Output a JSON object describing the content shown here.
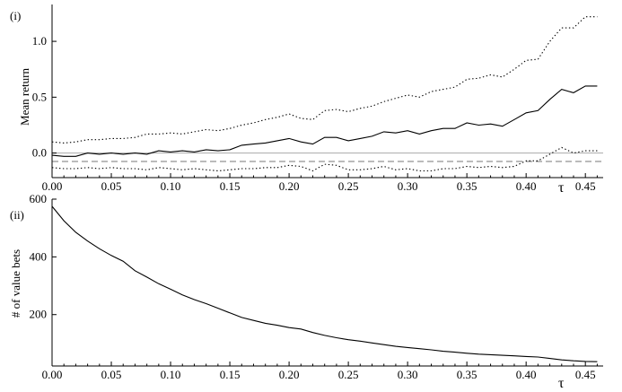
{
  "chart_data": [
    {
      "type": "line",
      "panel_label": "(i)",
      "xlabel": "τ",
      "ylabel": "Mean return",
      "xlim": [
        0,
        0.465
      ],
      "ylim": [
        -0.22,
        1.33
      ],
      "xticks": [
        0.0,
        0.05,
        0.1,
        0.15,
        0.2,
        0.25,
        0.3,
        0.35,
        0.4,
        0.45
      ],
      "xtick_labels": [
        "0.00",
        "0.05",
        "0.10",
        "0.15",
        "0.20",
        "0.25",
        "0.30",
        "0.35",
        "0.40",
        "0.45"
      ],
      "yticks": [
        0.0,
        0.5,
        1.0
      ],
      "ytick_labels": [
        "0.0",
        "0.5",
        "1.0"
      ],
      "reference_lines": [
        {
          "y": 0.0,
          "style": "solid",
          "color": "#aaaaaa"
        },
        {
          "y": -0.075,
          "style": "dashed",
          "color": "#777777"
        }
      ],
      "series": [
        {
          "style": "solid",
          "x": [
            0.0,
            0.01,
            0.02,
            0.03,
            0.04,
            0.05,
            0.06,
            0.07,
            0.08,
            0.09,
            0.1,
            0.11,
            0.12,
            0.13,
            0.14,
            0.15,
            0.16,
            0.17,
            0.18,
            0.19,
            0.2,
            0.21,
            0.22,
            0.23,
            0.24,
            0.25,
            0.26,
            0.27,
            0.28,
            0.29,
            0.3,
            0.31,
            0.32,
            0.33,
            0.34,
            0.35,
            0.36,
            0.37,
            0.38,
            0.39,
            0.4,
            0.41,
            0.42,
            0.43,
            0.44,
            0.45,
            0.46
          ],
          "y": [
            -0.02,
            -0.03,
            -0.03,
            0.0,
            -0.01,
            0.0,
            -0.01,
            0.0,
            -0.01,
            0.02,
            0.01,
            0.02,
            0.01,
            0.03,
            0.02,
            0.03,
            0.07,
            0.08,
            0.09,
            0.11,
            0.13,
            0.1,
            0.08,
            0.14,
            0.14,
            0.11,
            0.13,
            0.15,
            0.19,
            0.18,
            0.2,
            0.17,
            0.2,
            0.22,
            0.22,
            0.27,
            0.25,
            0.26,
            0.24,
            0.3,
            0.36,
            0.38,
            0.48,
            0.57,
            0.54,
            0.6,
            0.6
          ]
        },
        {
          "style": "dotted",
          "x": [
            0.0,
            0.01,
            0.02,
            0.03,
            0.04,
            0.05,
            0.06,
            0.07,
            0.08,
            0.09,
            0.1,
            0.11,
            0.12,
            0.13,
            0.14,
            0.15,
            0.16,
            0.17,
            0.18,
            0.19,
            0.2,
            0.21,
            0.22,
            0.23,
            0.24,
            0.25,
            0.26,
            0.27,
            0.28,
            0.29,
            0.3,
            0.31,
            0.32,
            0.33,
            0.34,
            0.35,
            0.36,
            0.37,
            0.38,
            0.39,
            0.4,
            0.41,
            0.42,
            0.43,
            0.44,
            0.45,
            0.46
          ],
          "y": [
            0.1,
            0.09,
            0.1,
            0.12,
            0.12,
            0.13,
            0.13,
            0.14,
            0.17,
            0.17,
            0.18,
            0.17,
            0.19,
            0.21,
            0.2,
            0.22,
            0.25,
            0.27,
            0.3,
            0.32,
            0.35,
            0.31,
            0.3,
            0.38,
            0.39,
            0.37,
            0.4,
            0.42,
            0.46,
            0.49,
            0.52,
            0.5,
            0.55,
            0.57,
            0.59,
            0.66,
            0.67,
            0.7,
            0.68,
            0.75,
            0.83,
            0.84,
            1.0,
            1.12,
            1.12,
            1.22,
            1.22
          ]
        },
        {
          "style": "dotted",
          "x": [
            0.0,
            0.01,
            0.02,
            0.03,
            0.04,
            0.05,
            0.06,
            0.07,
            0.08,
            0.09,
            0.1,
            0.11,
            0.12,
            0.13,
            0.14,
            0.15,
            0.16,
            0.17,
            0.18,
            0.19,
            0.2,
            0.21,
            0.22,
            0.23,
            0.24,
            0.25,
            0.26,
            0.27,
            0.28,
            0.29,
            0.3,
            0.31,
            0.32,
            0.33,
            0.34,
            0.35,
            0.36,
            0.37,
            0.38,
            0.39,
            0.4,
            0.41,
            0.42,
            0.43,
            0.44,
            0.45,
            0.46
          ],
          "y": [
            -0.13,
            -0.14,
            -0.14,
            -0.13,
            -0.14,
            -0.13,
            -0.14,
            -0.14,
            -0.15,
            -0.13,
            -0.14,
            -0.15,
            -0.14,
            -0.15,
            -0.16,
            -0.15,
            -0.14,
            -0.14,
            -0.13,
            -0.13,
            -0.11,
            -0.12,
            -0.16,
            -0.1,
            -0.11,
            -0.15,
            -0.15,
            -0.14,
            -0.12,
            -0.15,
            -0.14,
            -0.16,
            -0.16,
            -0.14,
            -0.14,
            -0.12,
            -0.13,
            -0.12,
            -0.13,
            -0.12,
            -0.07,
            -0.07,
            -0.01,
            0.05,
            0.0,
            0.02,
            0.02
          ]
        }
      ]
    },
    {
      "type": "line",
      "panel_label": "(ii)",
      "xlabel": "τ",
      "ylabel": "# of value bets",
      "xlim": [
        0,
        0.465
      ],
      "ylim": [
        22,
        600
      ],
      "xticks": [
        0.0,
        0.05,
        0.1,
        0.15,
        0.2,
        0.25,
        0.3,
        0.35,
        0.4,
        0.45
      ],
      "xtick_labels": [
        "0.00",
        "0.05",
        "0.10",
        "0.15",
        "0.20",
        "0.25",
        "0.30",
        "0.35",
        "0.40",
        "0.45"
      ],
      "yticks": [
        200,
        400,
        600
      ],
      "ytick_labels": [
        "200",
        "400",
        "600"
      ],
      "series": [
        {
          "style": "solid",
          "x": [
            0.0,
            0.01,
            0.02,
            0.03,
            0.04,
            0.05,
            0.06,
            0.07,
            0.08,
            0.09,
            0.1,
            0.11,
            0.12,
            0.13,
            0.14,
            0.15,
            0.16,
            0.17,
            0.18,
            0.19,
            0.2,
            0.21,
            0.22,
            0.23,
            0.24,
            0.25,
            0.26,
            0.27,
            0.28,
            0.29,
            0.3,
            0.31,
            0.32,
            0.33,
            0.34,
            0.35,
            0.36,
            0.37,
            0.38,
            0.39,
            0.4,
            0.41,
            0.42,
            0.43,
            0.44,
            0.45,
            0.46
          ],
          "y": [
            575,
            525,
            485,
            455,
            428,
            405,
            385,
            352,
            330,
            307,
            288,
            268,
            252,
            238,
            222,
            206,
            190,
            180,
            170,
            163,
            155,
            150,
            138,
            128,
            120,
            113,
            108,
            102,
            96,
            90,
            86,
            82,
            78,
            73,
            70,
            66,
            63,
            61,
            59,
            57,
            55,
            53,
            48,
            43,
            40,
            38,
            37
          ]
        }
      ]
    }
  ]
}
